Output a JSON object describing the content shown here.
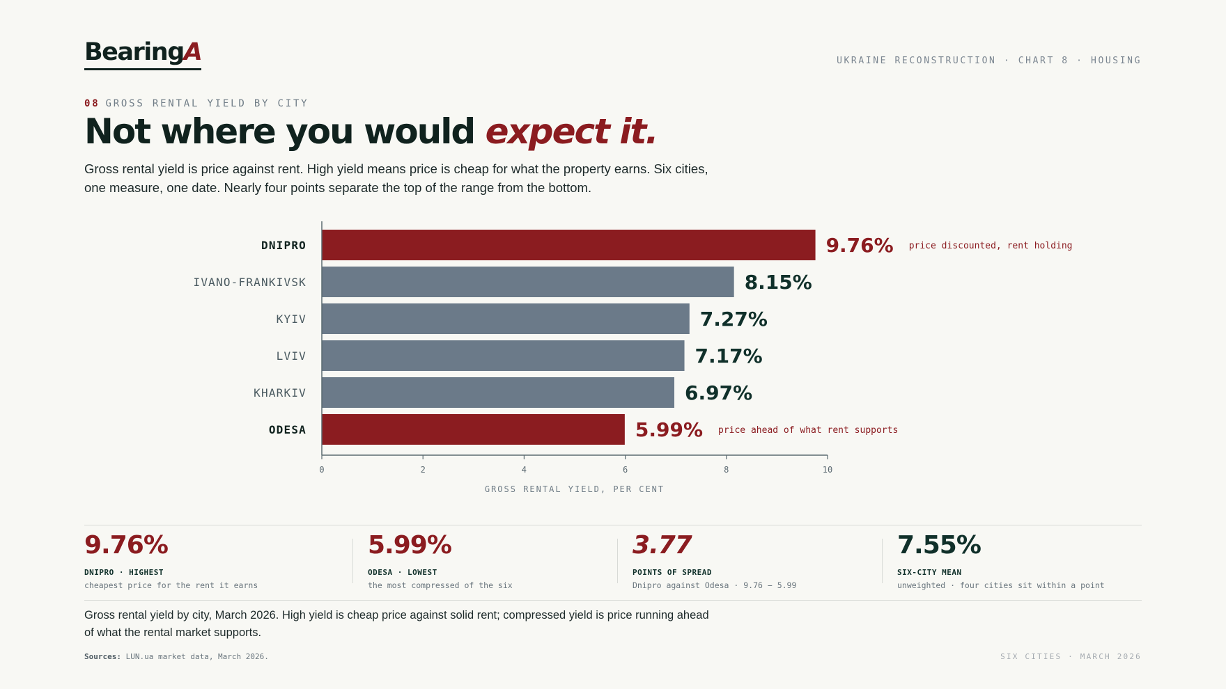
{
  "header": {
    "logo_main": "Bearing",
    "logo_accent": "A",
    "top_tag": "UKRAINE RECONSTRUCTION · CHART 8 · HOUSING",
    "eyebrow_num": "08",
    "eyebrow_text": "GROSS RENTAL YIELD BY CITY",
    "headline_main": "Not where you would ",
    "headline_accent": "expect it.",
    "dek": "Gross rental yield is price against rent. High yield means price is cheap for what the property earns. Six cities, one measure, one date. Nearly four points separate the top of the range from the bottom."
  },
  "chart_data": {
    "type": "bar",
    "orientation": "horizontal",
    "categories": [
      "DNIPRO",
      "IVANO-FRANKIVSK",
      "KYIV",
      "LVIV",
      "KHARKIV",
      "ODESA"
    ],
    "values": [
      9.76,
      8.15,
      7.27,
      7.17,
      6.97,
      5.99
    ],
    "value_labels": [
      "9.76%",
      "8.15%",
      "7.27%",
      "7.17%",
      "6.97%",
      "5.99%"
    ],
    "highlighted": [
      true,
      false,
      false,
      false,
      false,
      true
    ],
    "annotations": [
      "price discounted, rent holding",
      "",
      "",
      "",
      "",
      "price ahead of what rent supports"
    ],
    "xlabel": "GROSS RENTAL YIELD, PER CENT",
    "xlim": [
      0,
      10
    ],
    "xticks": [
      0,
      2,
      4,
      6,
      8,
      10
    ],
    "grid": false,
    "colors": {
      "highlight": "#8b1c20",
      "base": "#6b7a89",
      "label_dark": "#10221e",
      "label_muted": "#4a5a60",
      "value_dark": "#10302a"
    }
  },
  "stats": [
    {
      "value": "9.76%",
      "title": "DNIPRO · HIGHEST",
      "sub": "cheapest price for the rent it earns",
      "color": "#8b1c20",
      "italic": false
    },
    {
      "value": "5.99%",
      "title": "ODESA · LOWEST",
      "sub": "the most compressed of the six",
      "color": "#8b1c20",
      "italic": false
    },
    {
      "value": "3.77",
      "title": "POINTS OF SPREAD",
      "sub": "Dnipro against Odesa · 9.76 − 5.99",
      "color": "#8b1c20",
      "italic": true
    },
    {
      "value": "7.55%",
      "title": "SIX-CITY MEAN",
      "sub": "unweighted · four cities sit within a point",
      "color": "#10302a",
      "italic": false
    }
  ],
  "footer": {
    "caption": "Gross rental yield by city, March 2026. High yield is cheap price against solid rent; compressed yield is price running ahead of what the rental market supports.",
    "sources_label": "Sources:",
    "sources_text": " LUN.ua market data, March 2026.",
    "tag": "SIX CITIES · MARCH 2026"
  }
}
